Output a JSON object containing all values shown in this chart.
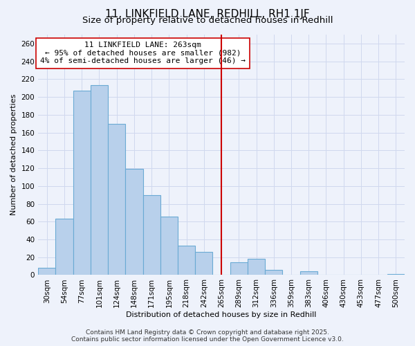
{
  "title": "11, LINKFIELD LANE, REDHILL, RH1 1JF",
  "subtitle": "Size of property relative to detached houses in Redhill",
  "xlabel": "Distribution of detached houses by size in Redhill",
  "ylabel": "Number of detached properties",
  "bar_labels": [
    "30sqm",
    "54sqm",
    "77sqm",
    "101sqm",
    "124sqm",
    "148sqm",
    "171sqm",
    "195sqm",
    "218sqm",
    "242sqm",
    "265sqm",
    "289sqm",
    "312sqm",
    "336sqm",
    "359sqm",
    "383sqm",
    "406sqm",
    "430sqm",
    "453sqm",
    "477sqm",
    "500sqm"
  ],
  "bar_values": [
    8,
    63,
    207,
    213,
    170,
    119,
    90,
    66,
    33,
    26,
    0,
    14,
    18,
    6,
    0,
    4,
    0,
    0,
    0,
    0,
    1
  ],
  "bar_color": "#b8d0eb",
  "bar_edge_color": "#6aaad4",
  "vline_x_idx": 10,
  "vline_color": "#cc0000",
  "annotation_title": "11 LINKFIELD LANE: 263sqm",
  "annotation_line1": "← 95% of detached houses are smaller (982)",
  "annotation_line2": "4% of semi-detached houses are larger (46) →",
  "annotation_box_edge": "#cc0000",
  "ylim": [
    0,
    270
  ],
  "yticks": [
    0,
    20,
    40,
    60,
    80,
    100,
    120,
    140,
    160,
    180,
    200,
    220,
    240,
    260
  ],
  "footer1": "Contains HM Land Registry data © Crown copyright and database right 2025.",
  "footer2": "Contains public sector information licensed under the Open Government Licence v3.0.",
  "bg_color": "#eef2fb",
  "grid_color": "#d0d8ee",
  "title_fontsize": 11,
  "subtitle_fontsize": 9.5,
  "axis_label_fontsize": 8,
  "tick_fontsize": 7.5,
  "annotation_fontsize": 8,
  "footer_fontsize": 6.5
}
